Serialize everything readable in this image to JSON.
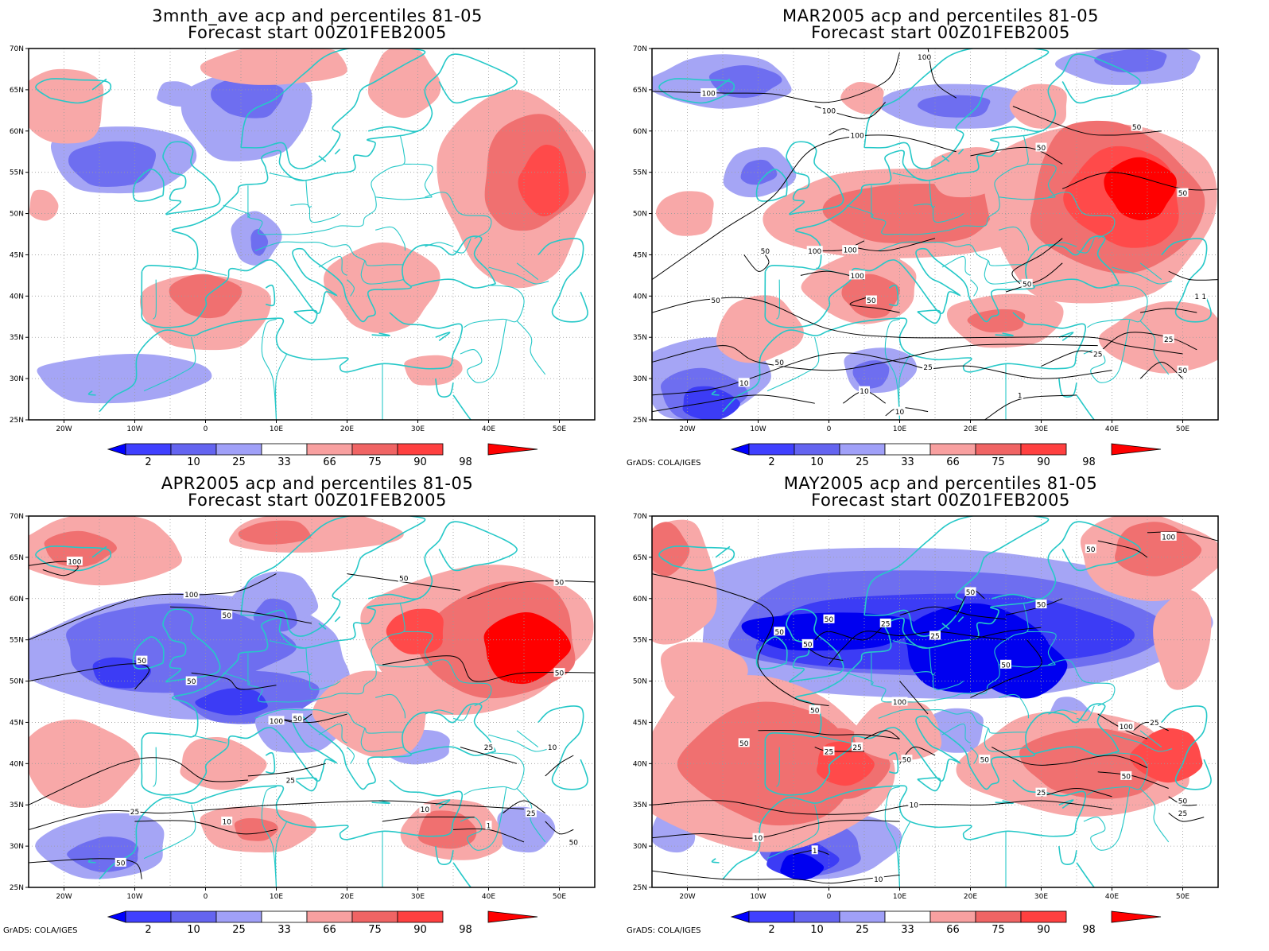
{
  "panels": [
    {
      "id": "p1",
      "title_line1": "3mnth_ave acp and percentiles 81-05",
      "title_line2": "Forecast start 00Z01FEB2005",
      "credit": "",
      "contour_labels": []
    },
    {
      "id": "p2",
      "title_line1": "MAR2005 acp and percentiles 81-05",
      "title_line2": "Forecast start 00Z01FEB2005",
      "credit": "GrADS: COLA/IGES",
      "contour_labels": [
        "100",
        "100",
        "100",
        "100",
        "50",
        "50",
        "50",
        "50",
        "100",
        "100",
        "100",
        "50",
        "50",
        "50",
        "50",
        "25",
        "25",
        "25",
        "10",
        "10",
        "10",
        "1",
        "1",
        "1",
        "50",
        "25",
        "50"
      ]
    },
    {
      "id": "p3",
      "title_line1": "APR2005 acp and percentiles 81-05",
      "title_line2": "Forecast start 00Z01FEB2005",
      "credit": "GrADS: COLA/IGES",
      "contour_labels": [
        "100",
        "100",
        "50",
        "50",
        "50",
        "50",
        "50",
        "50",
        "50",
        "100",
        "25",
        "25",
        "25",
        "10",
        "10",
        "50",
        "1",
        "10",
        "25",
        "50",
        "25"
      ]
    },
    {
      "id": "p4",
      "title_line1": "MAY2005 acp and percentiles 81-05",
      "title_line2": "Forecast start 00Z01FEB2005",
      "credit": "GrADS: COLA/IGES",
      "contour_labels": [
        "50",
        "50",
        "50",
        "50",
        "25",
        "50",
        "25",
        "50",
        "100",
        "50",
        "100",
        "50",
        "50",
        "25",
        "25",
        "50",
        "10",
        "10",
        "1",
        "10",
        "50",
        "25",
        "100",
        "50",
        "25",
        "50",
        "25"
      ]
    }
  ],
  "lat_labels": [
    "70N",
    "65N",
    "60N",
    "55N",
    "50N",
    "45N",
    "40N",
    "35N",
    "30N",
    "25N"
  ],
  "lon_labels": [
    "20W",
    "10W",
    "0",
    "10E",
    "20E",
    "30E",
    "40E",
    "50E"
  ],
  "colorbar_labels": [
    "2",
    "10",
    "25",
    "33",
    "66",
    "75",
    "90",
    "98"
  ],
  "colorbar_colors": [
    "#0000ff",
    "#4040ff",
    "#6464f0",
    "#a0a0f8",
    "#ffffff",
    "#f8a0a0",
    "#f06464",
    "#ff4040",
    "#ff0000"
  ],
  "colors": {
    "coast": "#26c8c8",
    "contour": "#000000",
    "grid": "#9a9a9a"
  }
}
